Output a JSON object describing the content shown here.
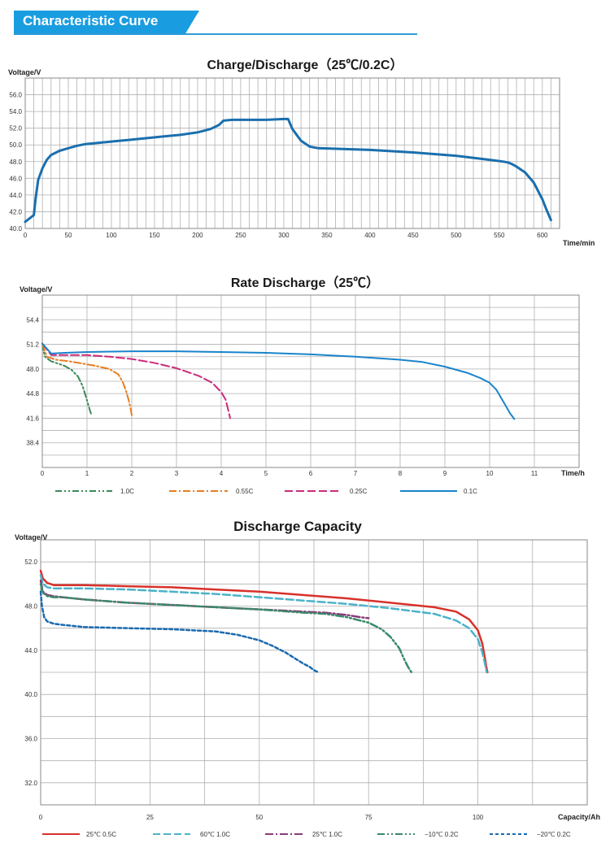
{
  "header": {
    "title": "Characteristic Curve",
    "accent": "#1a9de0"
  },
  "chart_data": [
    {
      "type": "line",
      "title": "Charge/Discharge（25℃/0.2C）",
      "ylabel": "Voltage/V",
      "xlabel": "Time/min",
      "xlim": [
        0,
        620
      ],
      "ylim": [
        40,
        58
      ],
      "xticks": [
        0,
        50,
        100,
        150,
        200,
        250,
        300,
        350,
        400,
        450,
        500,
        550,
        600
      ],
      "yticks": [
        40,
        42,
        44,
        46,
        48,
        50,
        52,
        54,
        56
      ],
      "ytick_labels": [
        "40.0",
        "42.0",
        "44.0",
        "46.0",
        "48.0",
        "50.0",
        "52.0",
        "54.0",
        "56.0"
      ],
      "grid": true,
      "series": [
        {
          "color": "#1a6fae",
          "x": [
            0,
            5,
            10,
            12,
            15,
            20,
            25,
            30,
            40,
            50,
            60,
            70,
            80,
            100,
            120,
            140,
            160,
            180,
            200,
            215,
            225,
            230,
            240,
            260,
            280,
            300,
            305,
            310,
            320,
            330,
            340,
            400,
            450,
            500,
            540,
            555,
            560,
            565,
            570,
            580,
            590,
            600,
            605,
            610
          ],
          "y": [
            40.8,
            41.2,
            41.6,
            43.5,
            45.8,
            47.2,
            48.2,
            48.8,
            49.3,
            49.6,
            49.9,
            50.1,
            50.2,
            50.4,
            50.6,
            50.8,
            51.0,
            51.2,
            51.5,
            51.9,
            52.4,
            52.9,
            53.0,
            53.0,
            53.0,
            53.1,
            53.1,
            51.9,
            50.5,
            49.8,
            49.6,
            49.4,
            49.1,
            48.7,
            48.2,
            48.0,
            47.9,
            47.7,
            47.4,
            46.7,
            45.5,
            43.5,
            42.2,
            41.0
          ]
        }
      ]
    },
    {
      "type": "line",
      "title": "Rate Discharge（25℃）",
      "ylabel": "Voltage/V",
      "xlabel": "Time/h",
      "xlim": [
        0,
        12
      ],
      "ylim": [
        35.2,
        57.6
      ],
      "xticks": [
        0,
        1,
        2,
        3,
        4,
        5,
        6,
        7,
        8,
        9,
        10,
        11
      ],
      "yticks": [
        38.4,
        41.6,
        44.8,
        48.0,
        51.2,
        54.4
      ],
      "ytick_labels": [
        "38.4",
        "41.6",
        "44.8",
        "48.0",
        "51.2",
        "54.4"
      ],
      "grid": true,
      "legend": "bottom",
      "series": [
        {
          "name": "1.0C",
          "color": "#3a8a5a",
          "dash": "8,3,2,3,2,3",
          "x": [
            0,
            0.05,
            0.1,
            0.2,
            0.35,
            0.5,
            0.65,
            0.8,
            0.9,
            0.97,
            1.02,
            1.06,
            1.1
          ],
          "y": [
            51.3,
            49.7,
            49.4,
            49.0,
            48.7,
            48.4,
            47.9,
            47.0,
            45.8,
            44.5,
            43.5,
            42.7,
            42.0
          ]
        },
        {
          "name": "0.55C",
          "color": "#e67e22",
          "dash": "9,3,2,3",
          "x": [
            0,
            0.1,
            0.3,
            0.6,
            0.9,
            1.2,
            1.5,
            1.7,
            1.8,
            1.88,
            1.93,
            1.97,
            2.0
          ],
          "y": [
            51.3,
            49.6,
            49.2,
            49.0,
            48.7,
            48.4,
            48.0,
            47.3,
            46.3,
            45.0,
            44.0,
            43.0,
            42.0
          ]
        },
        {
          "name": "0.25C",
          "color": "#cc2a7a",
          "dash": "10,4",
          "x": [
            0,
            0.2,
            0.5,
            1,
            1.5,
            2,
            2.5,
            3,
            3.5,
            3.8,
            4.0,
            4.1,
            4.15,
            4.2
          ],
          "y": [
            51.3,
            49.8,
            49.8,
            49.8,
            49.6,
            49.3,
            48.8,
            48.1,
            47.1,
            46.2,
            45.0,
            44.0,
            42.8,
            41.6
          ]
        },
        {
          "name": "0.1C",
          "color": "#1a84cc",
          "dash": "",
          "x": [
            0,
            0.2,
            0.5,
            1,
            2,
            3,
            4,
            5,
            6,
            7,
            8,
            8.5,
            9,
            9.5,
            9.8,
            10,
            10.15,
            10.25,
            10.35,
            10.45,
            10.55
          ],
          "y": [
            51.3,
            50.0,
            50.1,
            50.2,
            50.3,
            50.3,
            50.2,
            50.1,
            49.9,
            49.6,
            49.2,
            48.9,
            48.3,
            47.5,
            46.8,
            46.2,
            45.3,
            44.3,
            43.3,
            42.3,
            41.5
          ]
        }
      ]
    },
    {
      "type": "line",
      "title": "Discharge Capacity",
      "ylabel": "Voltage/V",
      "xlabel": "Capacity/Ah",
      "xlim": [
        0,
        125
      ],
      "ylim": [
        30,
        54
      ],
      "xticks": [
        0,
        25,
        50,
        75,
        100
      ],
      "yticks": [
        32,
        36,
        40,
        44,
        48,
        52
      ],
      "ytick_labels": [
        "32.0",
        "36.0",
        "40.0",
        "44.0",
        "48.0",
        "52.0"
      ],
      "grid": true,
      "legend": "bottom",
      "series": [
        {
          "name": "25℃ 0.5C",
          "color": "#d8312a",
          "dash": "",
          "x": [
            0,
            0.5,
            1.5,
            3,
            5,
            10,
            20,
            30,
            40,
            50,
            60,
            70,
            80,
            90,
            95,
            98,
            100,
            101,
            101.6,
            102,
            102.2
          ],
          "y": [
            51.2,
            50.5,
            50.1,
            49.9,
            49.9,
            49.9,
            49.8,
            49.7,
            49.5,
            49.3,
            49.0,
            48.7,
            48.3,
            47.9,
            47.5,
            46.8,
            45.8,
            44.6,
            43.3,
            42.3,
            42.0
          ]
        },
        {
          "name": "60℃ 1.0C",
          "color": "#4bb3c8",
          "dash": "9,4",
          "x": [
            0,
            0.5,
            1.5,
            3,
            5,
            10,
            20,
            30,
            40,
            50,
            60,
            70,
            80,
            90,
            95,
            98,
            100,
            101,
            101.6,
            102
          ],
          "y": [
            50.8,
            50.0,
            49.7,
            49.6,
            49.6,
            49.6,
            49.5,
            49.3,
            49.1,
            48.8,
            48.5,
            48.2,
            47.8,
            47.3,
            46.7,
            46.0,
            45.0,
            43.8,
            42.8,
            42.0
          ]
        },
        {
          "name": "25℃ 1.0C",
          "color": "#8a3a7a",
          "dash": "10,3,2,3",
          "x": [
            0,
            0.5,
            1.5,
            3,
            5,
            10,
            20,
            30,
            40,
            50,
            60,
            65,
            70,
            73,
            75
          ],
          "y": [
            50.3,
            49.3,
            49.0,
            48.9,
            48.8,
            48.6,
            48.3,
            48.1,
            47.9,
            47.7,
            47.5,
            47.4,
            47.2,
            47.0,
            46.9
          ]
        },
        {
          "name": "−10℃ 0.2C",
          "color": "#3a8a6a",
          "dash": "9,3,2,3,2,3",
          "x": [
            0,
            0.5,
            1.5,
            3,
            5,
            10,
            20,
            30,
            40,
            50,
            60,
            65,
            70,
            75,
            78,
            80,
            82,
            83,
            84,
            84.8
          ],
          "y": [
            50.0,
            49.2,
            48.9,
            48.8,
            48.8,
            48.6,
            48.3,
            48.1,
            47.9,
            47.7,
            47.4,
            47.3,
            47.0,
            46.5,
            45.9,
            45.2,
            44.2,
            43.3,
            42.5,
            42.0
          ]
        },
        {
          "name": "−20℃ 0.2C",
          "color": "#1a6ab0",
          "dash": "4,3",
          "x": [
            0,
            0.3,
            0.8,
            1.5,
            3,
            5,
            10,
            20,
            30,
            40,
            45,
            50,
            53,
            56,
            58,
            60,
            61.5,
            62.5,
            63.5
          ],
          "y": [
            49.3,
            48.0,
            47.0,
            46.6,
            46.4,
            46.3,
            46.1,
            46.0,
            45.9,
            45.7,
            45.4,
            44.9,
            44.4,
            43.8,
            43.3,
            42.8,
            42.5,
            42.2,
            42.0
          ]
        }
      ]
    }
  ]
}
